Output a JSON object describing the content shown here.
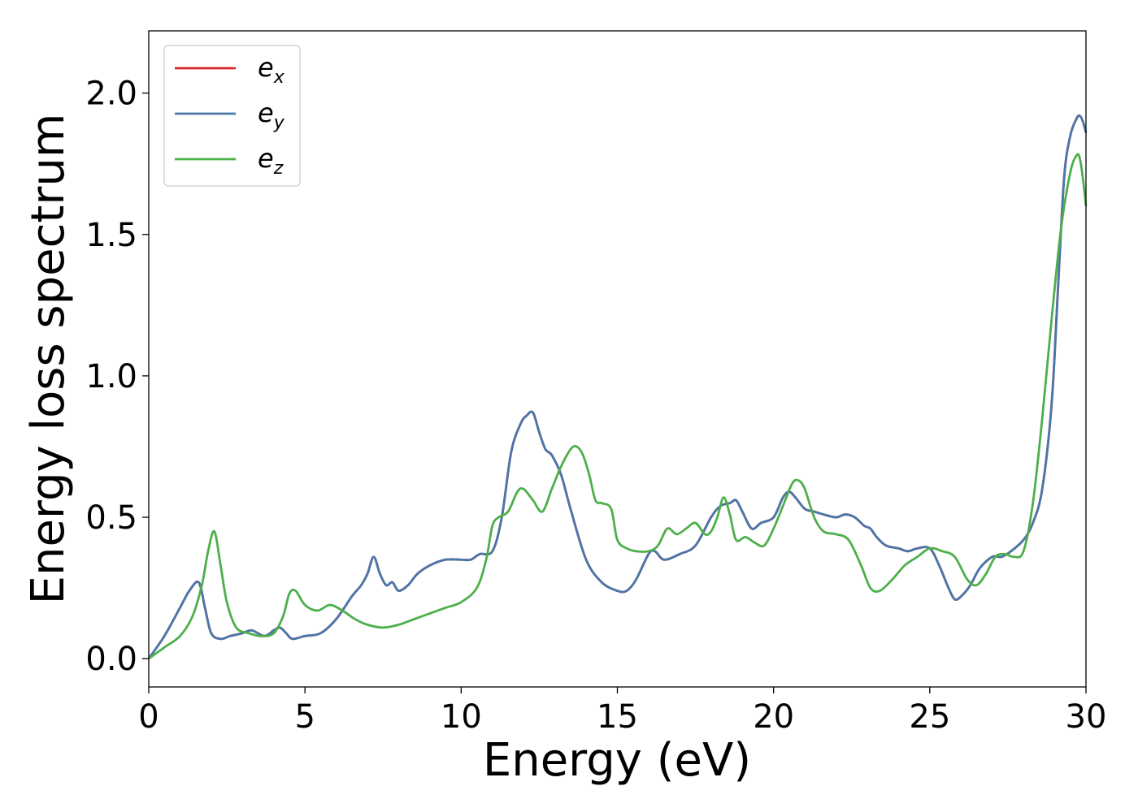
{
  "chart_data": {
    "type": "line",
    "xlabel": "Energy (eV)",
    "ylabel": "Energy loss spectrum",
    "xlim": [
      0,
      30
    ],
    "ylim": [
      -0.1,
      2.22
    ],
    "xticks": [
      0,
      5,
      10,
      15,
      20,
      25,
      30
    ],
    "xtick_labels": [
      "0",
      "5",
      "10",
      "15",
      "20",
      "25",
      "30"
    ],
    "yticks": [
      0.0,
      0.5,
      1.0,
      1.5,
      2.0
    ],
    "ytick_labels": [
      "0.0",
      "0.5",
      "1.0",
      "1.5",
      "2.0"
    ],
    "grid": false,
    "legend_position": "top-left",
    "colors": {
      "ex": "#d62728",
      "ey": "#4a76aa",
      "ez": "#4daf4a"
    },
    "series": [
      {
        "key": "ex",
        "name": "e",
        "subscript": "x",
        "x": [
          0,
          0.5,
          1.0,
          1.3,
          1.6,
          1.8,
          2.0,
          2.3,
          2.6,
          3.0,
          3.3,
          3.7,
          4.0,
          4.2,
          4.4,
          4.6,
          5.0,
          5.5,
          6.0,
          6.5,
          6.8,
          7.0,
          7.2,
          7.4,
          7.6,
          7.8,
          8.0,
          8.3,
          8.6,
          9.0,
          9.5,
          10.0,
          10.3,
          10.6,
          11.0,
          11.3,
          11.6,
          11.9,
          12.1,
          12.3,
          12.5,
          12.7,
          12.9,
          13.2,
          13.5,
          14.0,
          14.5,
          15.0,
          15.3,
          15.6,
          16.0,
          16.2,
          16.5,
          17.0,
          17.5,
          18.0,
          18.3,
          18.6,
          18.8,
          19.0,
          19.3,
          19.6,
          20.0,
          20.3,
          20.5,
          20.7,
          21.0,
          21.3,
          21.6,
          22.0,
          22.3,
          22.6,
          22.9,
          23.1,
          23.3,
          23.6,
          24.0,
          24.3,
          24.6,
          25.0,
          25.3,
          25.6,
          25.8,
          26.0,
          26.3,
          26.6,
          27.0,
          27.3,
          27.6,
          28.0,
          28.3,
          28.6,
          28.9,
          29.1,
          29.3,
          29.5,
          29.7,
          29.8,
          29.9,
          30.0
        ],
        "y": [
          0.0,
          0.08,
          0.18,
          0.24,
          0.27,
          0.18,
          0.09,
          0.07,
          0.08,
          0.09,
          0.1,
          0.08,
          0.1,
          0.11,
          0.09,
          0.07,
          0.08,
          0.09,
          0.14,
          0.22,
          0.26,
          0.3,
          0.36,
          0.3,
          0.26,
          0.27,
          0.24,
          0.26,
          0.3,
          0.33,
          0.35,
          0.35,
          0.35,
          0.37,
          0.38,
          0.5,
          0.73,
          0.83,
          0.86,
          0.87,
          0.8,
          0.74,
          0.72,
          0.65,
          0.53,
          0.35,
          0.27,
          0.24,
          0.24,
          0.28,
          0.37,
          0.38,
          0.35,
          0.37,
          0.4,
          0.5,
          0.54,
          0.55,
          0.56,
          0.52,
          0.46,
          0.48,
          0.5,
          0.57,
          0.59,
          0.57,
          0.53,
          0.52,
          0.51,
          0.5,
          0.51,
          0.5,
          0.47,
          0.46,
          0.43,
          0.4,
          0.39,
          0.38,
          0.39,
          0.39,
          0.33,
          0.25,
          0.21,
          0.22,
          0.26,
          0.32,
          0.36,
          0.36,
          0.38,
          0.42,
          0.48,
          0.6,
          0.9,
          1.3,
          1.7,
          1.85,
          1.91,
          1.92,
          1.9,
          1.86
        ]
      },
      {
        "key": "ey",
        "name": "e",
        "subscript": "y",
        "x": [
          0,
          0.5,
          1.0,
          1.3,
          1.6,
          1.8,
          2.0,
          2.3,
          2.6,
          3.0,
          3.3,
          3.7,
          4.0,
          4.2,
          4.4,
          4.6,
          5.0,
          5.5,
          6.0,
          6.5,
          6.8,
          7.0,
          7.2,
          7.4,
          7.6,
          7.8,
          8.0,
          8.3,
          8.6,
          9.0,
          9.5,
          10.0,
          10.3,
          10.6,
          11.0,
          11.3,
          11.6,
          11.9,
          12.1,
          12.3,
          12.5,
          12.7,
          12.9,
          13.2,
          13.5,
          14.0,
          14.5,
          15.0,
          15.3,
          15.6,
          16.0,
          16.2,
          16.5,
          17.0,
          17.5,
          18.0,
          18.3,
          18.6,
          18.8,
          19.0,
          19.3,
          19.6,
          20.0,
          20.3,
          20.5,
          20.7,
          21.0,
          21.3,
          21.6,
          22.0,
          22.3,
          22.6,
          22.9,
          23.1,
          23.3,
          23.6,
          24.0,
          24.3,
          24.6,
          25.0,
          25.3,
          25.6,
          25.8,
          26.0,
          26.3,
          26.6,
          27.0,
          27.3,
          27.6,
          28.0,
          28.3,
          28.6,
          28.9,
          29.1,
          29.3,
          29.5,
          29.7,
          29.8,
          29.9,
          30.0
        ],
        "y": [
          0.0,
          0.08,
          0.18,
          0.24,
          0.27,
          0.18,
          0.09,
          0.07,
          0.08,
          0.09,
          0.1,
          0.08,
          0.1,
          0.11,
          0.09,
          0.07,
          0.08,
          0.09,
          0.14,
          0.22,
          0.26,
          0.3,
          0.36,
          0.3,
          0.26,
          0.27,
          0.24,
          0.26,
          0.3,
          0.33,
          0.35,
          0.35,
          0.35,
          0.37,
          0.38,
          0.5,
          0.73,
          0.83,
          0.86,
          0.87,
          0.8,
          0.74,
          0.72,
          0.65,
          0.53,
          0.35,
          0.27,
          0.24,
          0.24,
          0.28,
          0.37,
          0.38,
          0.35,
          0.37,
          0.4,
          0.5,
          0.54,
          0.55,
          0.56,
          0.52,
          0.46,
          0.48,
          0.5,
          0.57,
          0.59,
          0.57,
          0.53,
          0.52,
          0.51,
          0.5,
          0.51,
          0.5,
          0.47,
          0.46,
          0.43,
          0.4,
          0.39,
          0.38,
          0.39,
          0.39,
          0.33,
          0.25,
          0.21,
          0.22,
          0.26,
          0.32,
          0.36,
          0.36,
          0.38,
          0.42,
          0.48,
          0.6,
          0.9,
          1.3,
          1.7,
          1.85,
          1.91,
          1.92,
          1.9,
          1.86
        ]
      },
      {
        "key": "ez",
        "name": "e",
        "subscript": "z",
        "x": [
          0,
          0.5,
          1.0,
          1.4,
          1.7,
          1.9,
          2.1,
          2.3,
          2.5,
          2.8,
          3.2,
          3.6,
          4.0,
          4.3,
          4.5,
          4.7,
          5.0,
          5.4,
          5.8,
          6.2,
          6.6,
          7.0,
          7.5,
          8.0,
          8.5,
          9.0,
          9.5,
          10.0,
          10.5,
          10.8,
          11.0,
          11.2,
          11.5,
          11.8,
          12.0,
          12.3,
          12.6,
          12.9,
          13.2,
          13.5,
          13.7,
          13.9,
          14.1,
          14.3,
          14.5,
          14.8,
          15.0,
          15.3,
          15.6,
          16.0,
          16.3,
          16.6,
          16.9,
          17.2,
          17.5,
          17.8,
          18.0,
          18.2,
          18.4,
          18.6,
          18.8,
          19.1,
          19.4,
          19.7,
          20.0,
          20.3,
          20.6,
          20.8,
          21.0,
          21.3,
          21.6,
          22.0,
          22.4,
          22.8,
          23.1,
          23.4,
          23.8,
          24.2,
          24.6,
          25.0,
          25.4,
          25.8,
          26.2,
          26.5,
          26.8,
          27.1,
          27.4,
          27.7,
          28.0,
          28.3,
          28.6,
          28.9,
          29.2,
          29.5,
          29.7,
          29.8,
          29.9,
          30.0
        ],
        "y": [
          0.0,
          0.04,
          0.08,
          0.15,
          0.26,
          0.38,
          0.45,
          0.33,
          0.2,
          0.11,
          0.09,
          0.08,
          0.09,
          0.15,
          0.23,
          0.24,
          0.19,
          0.17,
          0.19,
          0.17,
          0.14,
          0.12,
          0.11,
          0.12,
          0.14,
          0.16,
          0.18,
          0.2,
          0.25,
          0.35,
          0.47,
          0.5,
          0.52,
          0.59,
          0.6,
          0.56,
          0.52,
          0.6,
          0.68,
          0.74,
          0.75,
          0.72,
          0.65,
          0.56,
          0.55,
          0.53,
          0.42,
          0.39,
          0.38,
          0.38,
          0.4,
          0.46,
          0.44,
          0.46,
          0.48,
          0.44,
          0.45,
          0.5,
          0.57,
          0.51,
          0.42,
          0.43,
          0.41,
          0.4,
          0.46,
          0.54,
          0.62,
          0.63,
          0.6,
          0.5,
          0.45,
          0.44,
          0.42,
          0.33,
          0.25,
          0.24,
          0.28,
          0.33,
          0.36,
          0.39,
          0.38,
          0.36,
          0.28,
          0.26,
          0.3,
          0.36,
          0.37,
          0.36,
          0.38,
          0.55,
          0.85,
          1.2,
          1.52,
          1.72,
          1.78,
          1.77,
          1.7,
          1.6
        ]
      }
    ]
  }
}
